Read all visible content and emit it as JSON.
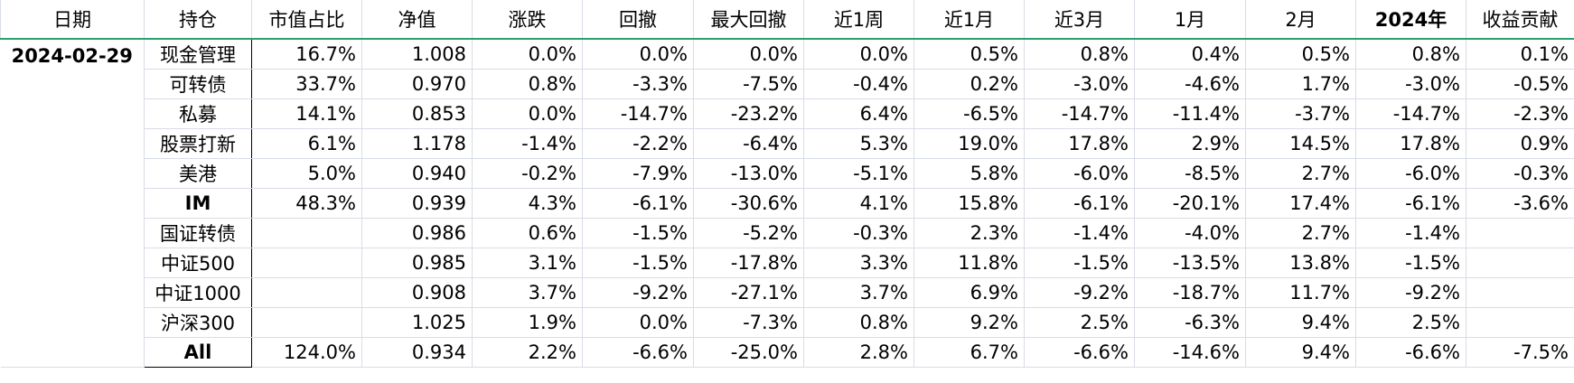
{
  "table": {
    "header": [
      "日期",
      "持仓",
      "市值占比",
      "净值",
      "涨跌",
      "回撤",
      "最大回撤",
      "近1周",
      "近1月",
      "近3月",
      "1月",
      "2月",
      "2024年",
      "收益贡献"
    ],
    "date": "2024-02-29",
    "rows": [
      [
        "现金管理",
        "16.7%",
        "1.008",
        "0.0%",
        "0.0%",
        "0.0%",
        "0.0%",
        "0.5%",
        "0.8%",
        "0.4%",
        "0.5%",
        "0.8%",
        "0.1%"
      ],
      [
        "可转债",
        "33.7%",
        "0.970",
        "0.8%",
        "-3.3%",
        "-7.5%",
        "-0.4%",
        "0.2%",
        "-3.0%",
        "-4.6%",
        "1.7%",
        "-3.0%",
        "-0.5%"
      ],
      [
        "私募",
        "14.1%",
        "0.853",
        "0.0%",
        "-14.7%",
        "-23.2%",
        "6.4%",
        "-6.5%",
        "-14.7%",
        "-11.4%",
        "-3.7%",
        "-14.7%",
        "-2.3%"
      ],
      [
        "股票打新",
        "6.1%",
        "1.178",
        "-1.4%",
        "-2.2%",
        "-6.4%",
        "5.3%",
        "19.0%",
        "17.8%",
        "2.9%",
        "14.5%",
        "17.8%",
        "0.9%"
      ],
      [
        "美港",
        "5.0%",
        "0.940",
        "-0.2%",
        "-7.9%",
        "-13.0%",
        "-5.1%",
        "5.8%",
        "-6.0%",
        "-8.5%",
        "2.7%",
        "-6.0%",
        "-0.3%"
      ],
      [
        "IM",
        "48.3%",
        "0.939",
        "4.3%",
        "-6.1%",
        "-30.6%",
        "4.1%",
        "15.8%",
        "-6.1%",
        "-20.1%",
        "17.4%",
        "-6.1%",
        "-3.6%"
      ],
      [
        "国证转债",
        null,
        "0.986",
        "0.6%",
        "-1.5%",
        "-5.2%",
        "-0.3%",
        "2.3%",
        "-1.4%",
        "-4.0%",
        "2.7%",
        "-1.4%",
        null
      ],
      [
        "中证500",
        null,
        "0.985",
        "3.1%",
        "-1.5%",
        "-17.8%",
        "3.3%",
        "11.8%",
        "-1.5%",
        "-13.5%",
        "13.8%",
        "-1.5%",
        null
      ],
      [
        "中证1000",
        null,
        "0.908",
        "3.7%",
        "-9.2%",
        "-27.1%",
        "3.7%",
        "6.9%",
        "-9.2%",
        "-18.7%",
        "11.7%",
        "-9.2%",
        null
      ],
      [
        "沪深300",
        null,
        "1.025",
        "1.9%",
        "0.0%",
        "-7.3%",
        "0.8%",
        "9.2%",
        "2.5%",
        "-6.3%",
        "9.4%",
        "2.5%",
        null
      ],
      [
        "All",
        "124.0%",
        "0.934",
        "2.2%",
        "-6.6%",
        "-25.0%",
        "2.8%",
        "6.7%",
        "-6.6%",
        "-14.6%",
        "9.4%",
        "-6.6%",
        "-7.5%"
      ]
    ]
  }
}
